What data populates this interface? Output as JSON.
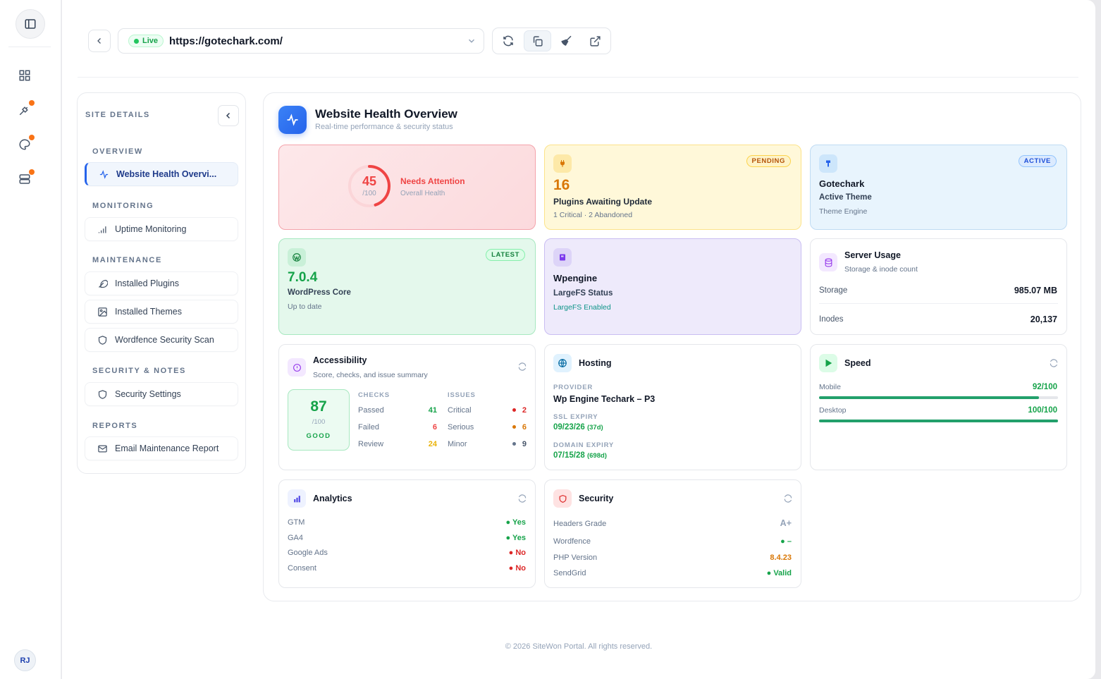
{
  "url_bar": {
    "live_label": "Live",
    "url": "https://gotechark.com/"
  },
  "user": {
    "initials": "RJ"
  },
  "sidebar": {
    "title": "SITE DETAILS",
    "sections": {
      "overview": "OVERVIEW",
      "monitoring": "MONITORING",
      "maintenance": "MAINTENANCE",
      "security": "SECURITY & NOTES",
      "reports": "REPORTS"
    },
    "items": {
      "health": "Website Health Overvi...",
      "uptime": "Uptime Monitoring",
      "plugins": "Installed Plugins",
      "themes": "Installed Themes",
      "wordfence": "Wordfence Security Scan",
      "security_settings": "Security Settings",
      "email_report": "Email Maintenance Report"
    }
  },
  "panel": {
    "title": "Website Health Overview",
    "subtitle": "Real-time performance & security status"
  },
  "health": {
    "score": "45",
    "max": "/100",
    "score_value": 45,
    "status": "Needs Attention",
    "caption": "Overall Health"
  },
  "plugins_card": {
    "badge": "PENDING",
    "count": "16",
    "label": "Plugins Awaiting Update",
    "detail": "1 Critical · 2 Abandoned"
  },
  "theme_card": {
    "badge": "ACTIVE",
    "name": "Gotechark",
    "label": "Active Theme",
    "detail": "Theme Engine"
  },
  "wp_card": {
    "badge": "LATEST",
    "version": "7.0.4",
    "label": "WordPress Core",
    "detail": "Up to date"
  },
  "host_card": {
    "name": "Wpengine",
    "label": "LargeFS Status",
    "detail": "LargeFS Enabled"
  },
  "server": {
    "title": "Server Usage",
    "subtitle": "Storage & inode count",
    "storage_label": "Storage",
    "storage_value": "985.07 MB",
    "inodes_label": "Inodes",
    "inodes_value": "20,137"
  },
  "accessibility": {
    "title": "Accessibility",
    "subtitle": "Score, checks, and issue summary",
    "score": "87",
    "max": "/100",
    "grade": "GOOD",
    "checks_header": "CHECKS",
    "issues_header": "ISSUES",
    "checks": [
      {
        "label": "Passed",
        "value": "41"
      },
      {
        "label": "Failed",
        "value": "6"
      },
      {
        "label": "Review",
        "value": "24"
      }
    ],
    "issues": [
      {
        "label": "Critical",
        "value": "2"
      },
      {
        "label": "Serious",
        "value": "6"
      },
      {
        "label": "Minor",
        "value": "9"
      }
    ]
  },
  "hosting": {
    "title": "Hosting",
    "provider_label": "PROVIDER",
    "provider": "Wp Engine Techark – P3",
    "ssl_label": "SSL EXPIRY",
    "ssl_date": "09/23/26",
    "ssl_days": "(37d)",
    "domain_label": "DOMAIN EXPIRY",
    "domain_date": "07/15/28",
    "domain_days": "(698d)"
  },
  "speed": {
    "title": "Speed",
    "mobile_label": "Mobile",
    "mobile_value": "92/100",
    "mobile_score": 92,
    "desktop_label": "Desktop",
    "desktop_value": "100/100",
    "desktop_score": 100
  },
  "analytics": {
    "title": "Analytics",
    "rows": [
      {
        "label": "GTM",
        "value": "Yes"
      },
      {
        "label": "GA4",
        "value": "Yes"
      },
      {
        "label": "Google Ads",
        "value": "No"
      },
      {
        "label": "Consent",
        "value": "No"
      }
    ]
  },
  "security": {
    "title": "Security",
    "rows": [
      {
        "label": "Headers Grade",
        "value": "A+"
      },
      {
        "label": "Wordfence",
        "value": "–"
      },
      {
        "label": "PHP Version",
        "value": "8.4.23"
      },
      {
        "label": "SendGrid",
        "value": "Valid"
      }
    ]
  },
  "footer": "© 2026 SiteWon Portal. All rights reserved.",
  "colors": {
    "accent": "#2563eb",
    "danger": "#ef4444",
    "success": "#22c55e",
    "warning": "#d97706"
  }
}
